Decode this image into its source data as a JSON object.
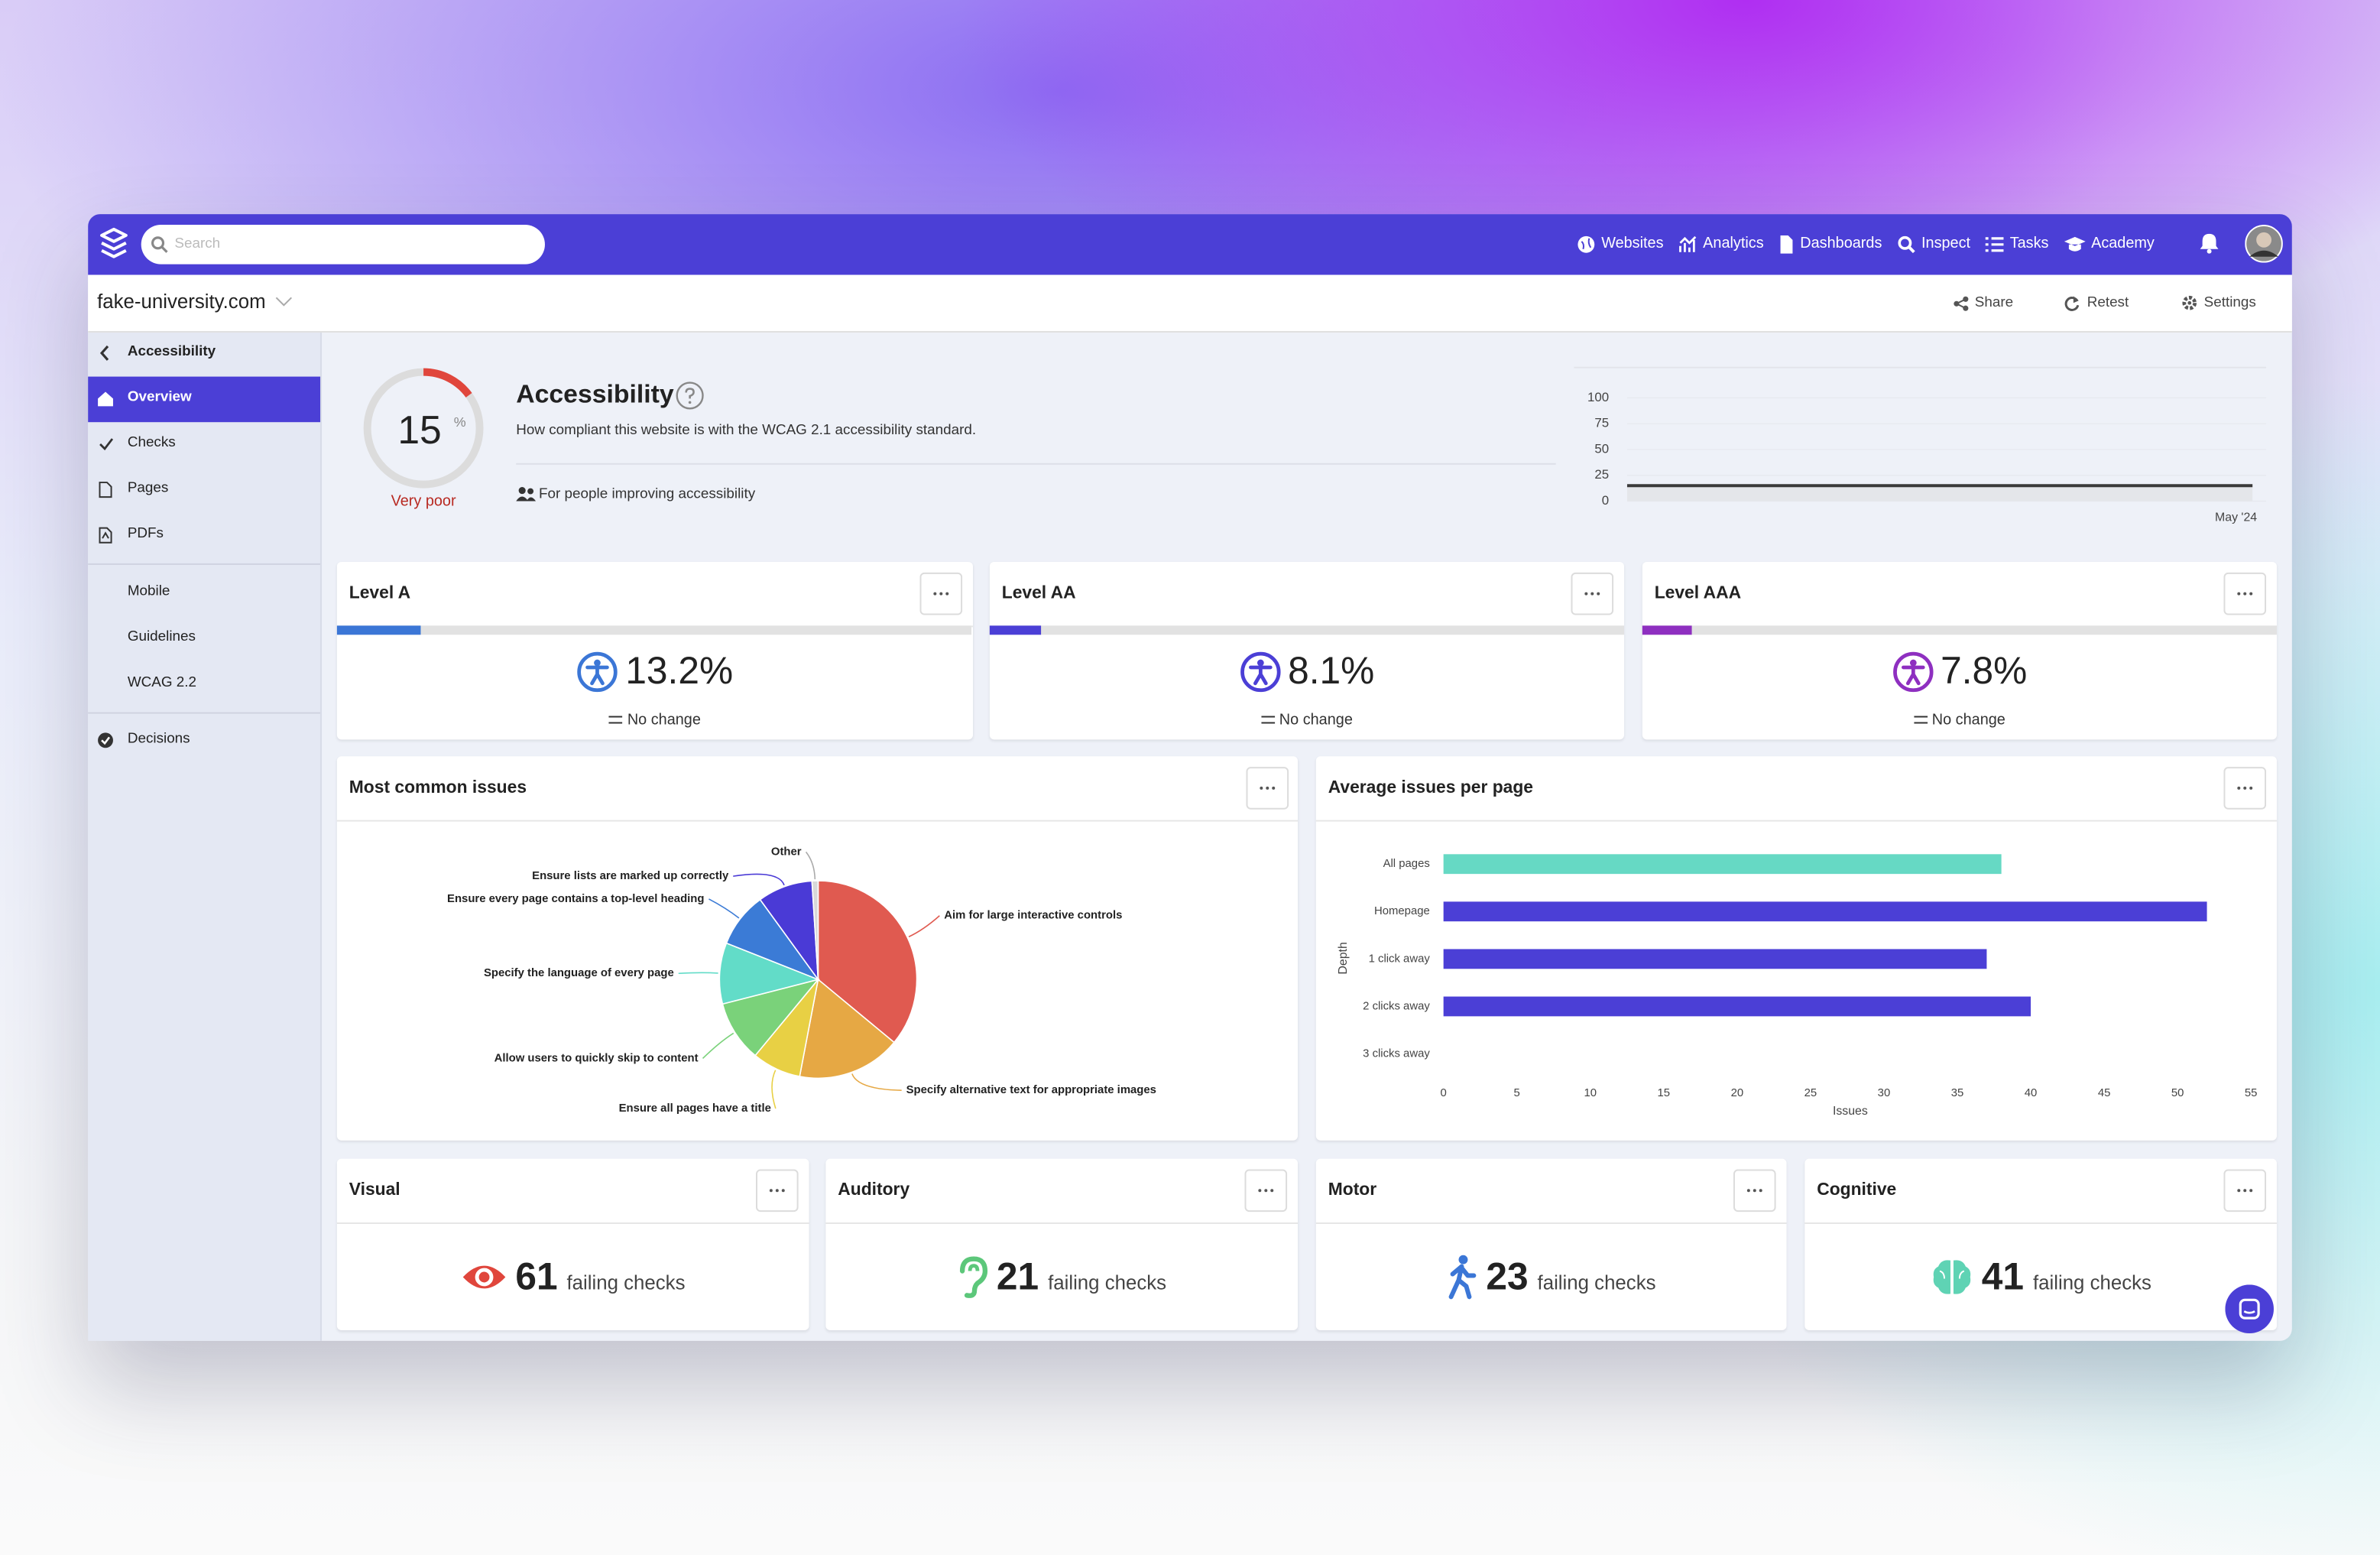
{
  "topbar": {
    "search_placeholder": "Search",
    "nav": [
      "Websites",
      "Analytics",
      "Dashboards",
      "Inspect",
      "Tasks",
      "Academy"
    ]
  },
  "site": {
    "name": "fake-university.com",
    "actions": [
      "Share",
      "Retest",
      "Settings"
    ]
  },
  "sidebar": {
    "back": "Accessibility",
    "groups": [
      [
        "Overview",
        "Checks",
        "Pages",
        "PDFs"
      ],
      [
        "Mobile",
        "Guidelines",
        "WCAG 2.2"
      ],
      [
        "Decisions"
      ]
    ]
  },
  "summary": {
    "title": "Accessibility",
    "score": 15,
    "unit": "%",
    "rating": "Very poor",
    "score_color": "#e0463c",
    "description": "How compliant this website is with the WCAG 2.1 accessibility standard.",
    "audience": "For people improving accessibility",
    "trend": {
      "type": "line",
      "x": [
        null,
        "May '24"
      ],
      "values": [
        15,
        15
      ],
      "ylim": [
        0,
        100
      ],
      "yticks": [
        0,
        25,
        50,
        75,
        100
      ],
      "grid": true,
      "color": "#3a3a3a"
    }
  },
  "levels": [
    {
      "title": "Level A",
      "value": 13.2,
      "value_label": "13.2%",
      "change": "No change",
      "color": "#3b76d6"
    },
    {
      "title": "Level AA",
      "value": 8.1,
      "value_label": "8.1%",
      "change": "No change",
      "color": "#4b3fd6"
    },
    {
      "title": "Level AAA",
      "value": 7.8,
      "value_label": "7.8%",
      "change": "No change",
      "color": "#8e2fc0"
    }
  ],
  "issues": {
    "title": "Most common issues",
    "chart": {
      "type": "pie",
      "categories": [
        "Aim for large interactive controls",
        "Specify alternative text for appropriate images",
        "Ensure all pages have a title",
        "Allow users to quickly skip to content",
        "Specify the language of every page",
        "Ensure every page contains a top-level heading",
        "Ensure lists are marked up correctly",
        "Other"
      ],
      "values": [
        36,
        17,
        8,
        10,
        10,
        9,
        9,
        1
      ],
      "colors": [
        "#e05a50",
        "#e6a844",
        "#e8d044",
        "#7ad27a",
        "#62dcc8",
        "#3b7bd6",
        "#4a3ad6",
        "#d8d8d8"
      ]
    }
  },
  "average": {
    "title": "Average issues per page",
    "chart": {
      "type": "bar",
      "orientation": "horizontal",
      "categories": [
        "All pages",
        "Homepage",
        "1 click away",
        "2 clicks away",
        "3 clicks away"
      ],
      "values": [
        38,
        52,
        37,
        40,
        0
      ],
      "colors": [
        "#66d9c4",
        "#4b3fd6",
        "#4b3fd6",
        "#4b3fd6",
        "#4b3fd6"
      ],
      "xlim": [
        0,
        55
      ],
      "xticks": [
        0,
        5,
        10,
        15,
        20,
        25,
        30,
        35,
        40,
        45,
        50,
        55
      ],
      "xlabel": "Issues",
      "ylabel": "Depth"
    }
  },
  "groups": [
    {
      "title": "Visual",
      "value": 61,
      "unit": "failing checks"
    },
    {
      "title": "Auditory",
      "value": 21,
      "unit": "failing checks"
    },
    {
      "title": "Motor",
      "value": 23,
      "unit": "failing checks"
    },
    {
      "title": "Cognitive",
      "value": 41,
      "unit": "failing checks"
    }
  ]
}
